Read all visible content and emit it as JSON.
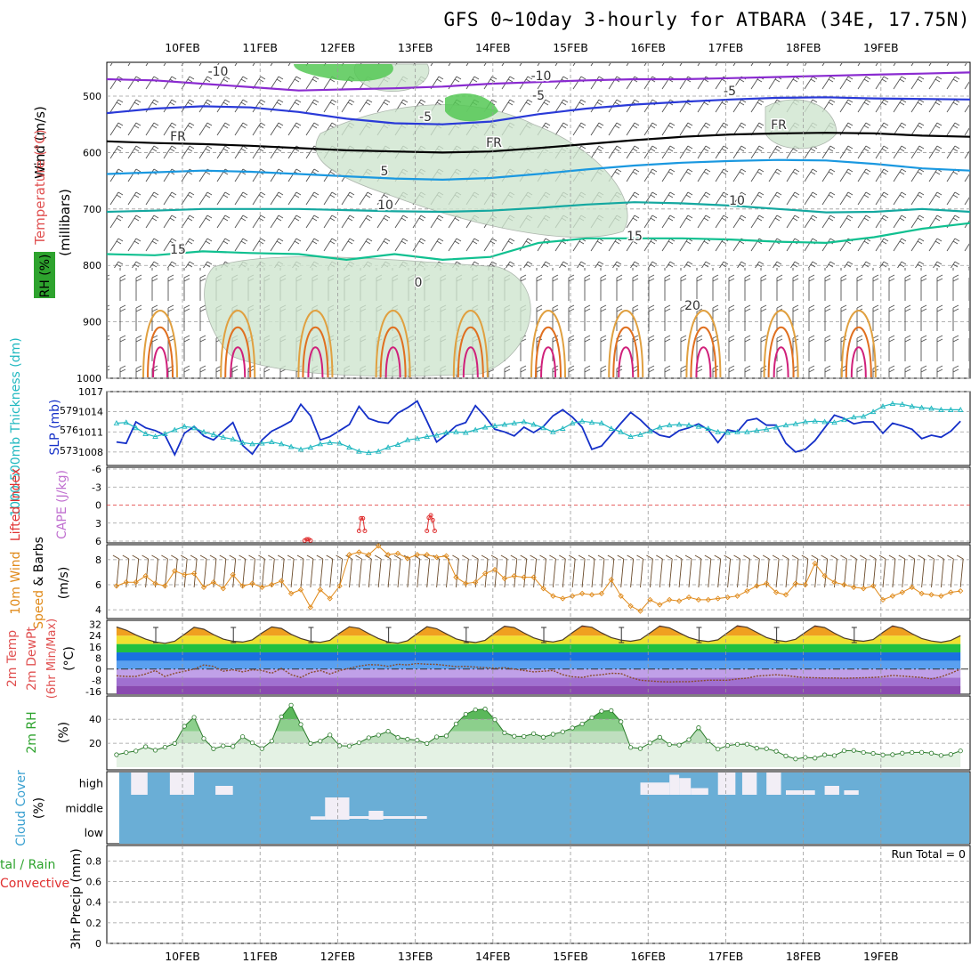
{
  "title": "GFS 0~10day 3-hourly for ATBARA (34E, 17.75N)",
  "colors": {
    "temperature_label": "#e05050",
    "rh_green": "#2ea32e",
    "slp": "#1530c8",
    "thickness": "#20b8c0",
    "cape": "#c070d0",
    "lifted_index": "#e03030",
    "wind10m": "#e08a1a",
    "cloud_label": "#3aa0d0",
    "cloud_fill": "#6aaed6",
    "precip_convective": "#e03030"
  },
  "chart_data": [
    {
      "panel": "upper-air",
      "type": "heatmap",
      "ylabel": "(millibars)",
      "side_labels": {
        "wind": "Wind (m/s)",
        "temperature": "Temperature (°C)",
        "rh": "RH (%)"
      },
      "yticks": [
        500,
        600,
        700,
        800,
        900,
        1000
      ],
      "ylim": [
        440,
        1000
      ],
      "x_ticks": [
        "10FEB",
        "11FEB",
        "12FEB",
        "13FEB",
        "14FEB",
        "15FEB",
        "16FEB",
        "17FEB",
        "18FEB",
        "19FEB"
      ],
      "contour_labels": [
        "-10",
        "-10",
        "-5",
        "-5",
        "FR",
        "FR",
        "FR",
        "-5",
        "5",
        "10",
        "10",
        "15",
        "15",
        "0",
        "20"
      ],
      "isotherms": [
        {
          "name": "-10",
          "color": "#8a2bd0",
          "p": [
            470,
            472,
            478,
            484,
            490,
            488,
            486,
            483,
            478,
            475,
            472,
            470,
            470,
            468,
            466,
            464,
            462,
            460,
            458
          ]
        },
        {
          "name": "-5",
          "color": "#2a3ad8",
          "p": [
            530,
            522,
            518,
            520,
            528,
            540,
            548,
            550,
            545,
            532,
            522,
            515,
            510,
            506,
            503,
            502,
            504,
            505,
            506
          ]
        },
        {
          "name": "FR",
          "color": "#000000",
          "p": [
            580,
            583,
            585,
            588,
            592,
            596,
            598,
            600,
            598,
            592,
            585,
            578,
            572,
            568,
            566,
            565,
            566,
            570,
            572
          ]
        },
        {
          "name": "5",
          "color": "#1a98e0",
          "p": [
            638,
            635,
            632,
            634,
            638,
            642,
            646,
            648,
            645,
            638,
            630,
            623,
            618,
            615,
            613,
            614,
            620,
            628,
            632
          ]
        },
        {
          "name": "10",
          "color": "#14a8a0",
          "p": [
            705,
            703,
            700,
            700,
            700,
            702,
            704,
            705,
            703,
            698,
            692,
            688,
            690,
            694,
            700,
            706,
            705,
            700,
            705
          ]
        },
        {
          "name": "15",
          "color": "#10c090",
          "p": [
            780,
            782,
            775,
            778,
            780,
            790,
            780,
            790,
            785,
            760,
            752,
            752,
            752,
            754,
            758,
            760,
            750,
            735,
            725
          ]
        }
      ]
    },
    {
      "panel": "slp-thickness",
      "type": "line",
      "ylabel_left": "1000-500mb Thickness (dm)",
      "ylabel_right": "SLP (mb)",
      "yticks_left": [
        573,
        576,
        579
      ],
      "yticks_right": [
        1008,
        1011,
        1014,
        1017
      ],
      "ylim_right": [
        1006,
        1017
      ],
      "series": [
        {
          "name": "SLP (mb)",
          "axis": "right",
          "values": [
            1009.5,
            1009.3,
            1012.5,
            1011.6,
            1011.2,
            1010.5,
            1007.6,
            1010.8,
            1011.8,
            1010.4,
            1009.8,
            1011.1,
            1012.4,
            1009.0,
            1007.7,
            1009.8,
            1011.1,
            1011.8,
            1012.6,
            1015.1,
            1013.4,
            1009.8,
            1010.3,
            1011.2,
            1012.1,
            1014.8,
            1013.0,
            1012.5,
            1012.3,
            1013.8,
            1014.6,
            1015.6,
            1012.6,
            1009.5,
            1010.6,
            1011.9,
            1012.4,
            1014.9,
            1013.3,
            1011.4,
            1011.0,
            1010.4,
            1011.7,
            1010.9,
            1011.8,
            1013.4,
            1014.3,
            1013.2,
            1011.7,
            1008.4,
            1008.9,
            1010.6,
            1012.3,
            1013.9,
            1012.8,
            1011.4,
            1010.5,
            1010.2,
            1011.2,
            1011.6,
            1012.2,
            1011.3,
            1009.4,
            1011.3,
            1011.0,
            1012.7,
            1013.0,
            1012.0,
            1012.0,
            1009.3,
            1008.0,
            1008.4,
            1009.7,
            1011.6,
            1013.5,
            1013.0,
            1012.2,
            1012.5,
            1012.5,
            1010.8,
            1012.3,
            1011.9,
            1011.4,
            1010.0,
            1010.5,
            1010.2,
            1011.1,
            1012.6
          ]
        },
        {
          "name": "Thickness (dm)",
          "axis": "left",
          "values": [
            1012.3,
            1012.4,
            1011.6,
            1010.7,
            1010.3,
            1010.7,
            1011.3,
            1011.8,
            1011.6,
            1011.0,
            1010.6,
            1010.2,
            1009.9,
            1009.4,
            1009.2,
            1009.3,
            1009.5,
            1009.2,
            1008.8,
            1008.4,
            1008.7,
            1009.2,
            1009.4,
            1009.3,
            1008.7,
            1008.1,
            1007.9,
            1008.1,
            1008.7,
            1009.1,
            1009.8,
            1010.0,
            1010.3,
            1010.5,
            1010.9,
            1011.0,
            1010.9,
            1011.3,
            1011.7,
            1011.9,
            1012.1,
            1012.3,
            1012.5,
            1012.1,
            1011.6,
            1011.0,
            1011.5,
            1012.3,
            1012.6,
            1012.4,
            1012.3,
            1011.5,
            1011.0,
            1010.3,
            1010.6,
            1011.1,
            1011.7,
            1012.0,
            1012.1,
            1012.0,
            1011.8,
            1011.5,
            1011.0,
            1010.9,
            1011.0,
            1011.0,
            1011.2,
            1011.4,
            1011.7,
            1012.0,
            1012.2,
            1012.5,
            1012.6,
            1012.5,
            1012.4,
            1012.8,
            1013.2,
            1013.3,
            1014.0,
            1014.8,
            1015.2,
            1015.1,
            1014.8,
            1014.6,
            1014.5,
            1014.3,
            1014.3,
            1014.3
          ]
        }
      ]
    },
    {
      "panel": "instability",
      "type": "line",
      "ylabel": "Lifted Index / CAPE (J/kg)",
      "yticks": [
        -6,
        -3,
        0,
        3,
        6
      ],
      "ylim": [
        -6,
        6
      ],
      "series": [
        {
          "name": "Lifted Index",
          "values": [
            [
              19.4,
              5.9
            ],
            [
              19.6,
              5.7
            ],
            [
              19.8,
              5.7
            ],
            [
              20.0,
              5.9
            ],
            [
              25.0,
              4.3
            ],
            [
              25.2,
              2.2
            ],
            [
              25.4,
              2.2
            ],
            [
              25.6,
              4.3
            ],
            [
              32.0,
              4.3
            ],
            [
              32.2,
              2.1
            ],
            [
              32.4,
              1.7
            ],
            [
              32.6,
              2.5
            ],
            [
              32.8,
              4.3
            ]
          ]
        }
      ]
    },
    {
      "panel": "wind10m",
      "type": "line",
      "ylabel": "10m Wind Speed & Barbs (m/s)",
      "yticks": [
        4,
        6,
        8
      ],
      "ylim": [
        3.3,
        9.2
      ],
      "series": [
        {
          "name": "10m Wind Speed",
          "values": [
            5.9,
            6.2,
            6.2,
            6.7,
            6.1,
            5.9,
            7.1,
            6.8,
            6.9,
            5.8,
            6.2,
            5.7,
            6.8,
            5.9,
            6.1,
            5.8,
            6.0,
            6.3,
            5.3,
            5.6,
            4.2,
            5.6,
            4.9,
            5.9,
            8.4,
            8.6,
            8.4,
            9.1,
            8.4,
            8.5,
            8.1,
            8.4,
            8.4,
            8.2,
            8.3,
            6.6,
            6.1,
            6.2,
            6.9,
            7.2,
            6.5,
            6.7,
            6.6,
            6.6,
            5.7,
            5.1,
            4.9,
            5.1,
            5.3,
            5.2,
            5.3,
            6.4,
            5.1,
            4.3,
            3.9,
            4.8,
            4.4,
            4.8,
            4.7,
            5.0,
            4.8,
            4.8,
            4.9,
            5.0,
            5.1,
            5.5,
            5.9,
            6.1,
            5.4,
            5.2,
            6.1,
            6.0,
            7.7,
            6.7,
            6.2,
            6.0,
            5.8,
            5.7,
            5.9,
            4.8,
            5.1,
            5.4,
            5.8,
            5.3,
            5.2,
            5.1,
            5.4,
            5.5
          ]
        }
      ]
    },
    {
      "panel": "temperature2m",
      "type": "area",
      "ylabel": "2m Temp / 2m DewPt (6hr Min/Max) (°C)",
      "yticks": [
        32,
        24,
        16,
        8,
        0,
        -8,
        -16
      ],
      "ylim": [
        -18,
        35
      ],
      "series": [
        {
          "name": "2m Temp",
          "values": [
            30.2,
            28.0,
            24.5,
            21.5,
            19.5,
            18.5,
            20.0,
            25.0,
            30.0,
            28.6,
            24.8,
            21.5,
            20.0,
            19.4,
            21.0,
            26.0,
            30.3,
            29.2,
            25.0,
            22.0,
            20.0,
            19.2,
            20.7,
            25.8,
            30.4,
            29.3,
            25.5,
            22.0,
            19.5,
            18.6,
            20.4,
            25.5,
            30.4,
            29.0,
            25.3,
            21.7,
            19.9,
            19.1,
            20.7,
            26.0,
            30.8,
            29.8,
            26.0,
            22.4,
            20.4,
            19.5,
            21.0,
            26.2,
            31.0,
            30.0,
            26.0,
            22.6,
            20.8,
            20.0,
            21.2,
            26.0,
            30.9,
            29.6,
            26.1,
            22.7,
            20.7,
            19.8,
            21.0,
            26.2,
            31.1,
            30.0,
            26.4,
            22.7,
            20.7,
            19.8,
            21.4,
            26.4,
            31.0,
            29.8,
            25.8,
            22.3,
            20.7,
            20.0,
            21.2,
            26.4,
            31.0,
            29.4,
            25.4,
            22.0,
            20.2,
            19.3,
            20.6,
            24.0
          ]
        },
        {
          "name": "2m DewPt",
          "values": [
            -4.8,
            -5.2,
            -5.2,
            -3.5,
            -1.0,
            -5.3,
            -3.0,
            -1.5,
            0.0,
            3.0,
            2.0,
            -1.5,
            -0.5,
            -2.0,
            -0.5,
            -1.0,
            -3.0,
            0.5,
            -4.0,
            -6.0,
            -2.5,
            -1.0,
            -3.5,
            -1.0,
            0.5,
            2.2,
            3.2,
            3.0,
            2.0,
            3.5,
            3.0,
            4.0,
            3.5,
            3.4,
            2.6,
            1.8,
            2.0,
            1.5,
            1.0,
            0.5,
            1.0,
            0.0,
            -1.0,
            -2.0,
            -1.5,
            -1.0,
            -4.0,
            -5.5,
            -6.0,
            -4.5,
            -4.0,
            -3.0,
            -3.2,
            -6.0,
            -8.0,
            -8.5,
            -9.0,
            -9.2,
            -9.0,
            -9.0,
            -8.5,
            -8.0,
            -8.0,
            -8.0,
            -7.0,
            -6.5,
            -5.0,
            -4.5,
            -4.0,
            -4.5,
            -5.5,
            -6.0,
            -6.2,
            -6.4,
            -6.4,
            -6.6,
            -6.4,
            -6.2,
            -6.0,
            -5.5,
            -4.5,
            -5.0,
            -5.5,
            -6.0,
            -7.0,
            -5.5,
            -3.0,
            0.0
          ]
        }
      ]
    },
    {
      "panel": "rh2m",
      "type": "area",
      "ylabel": "2m RH (%)",
      "yticks": [
        20,
        40
      ],
      "ylim": [
        0,
        58
      ],
      "series": [
        {
          "name": "2m RH",
          "values": [
            10.4,
            12.2,
            13.5,
            17.1,
            14.2,
            16.7,
            19.8,
            34.2,
            41.7,
            23.9,
            15.4,
            17.8,
            17.3,
            25.5,
            20.4,
            15.5,
            21.8,
            42.1,
            51.8,
            35.7,
            19.8,
            21.8,
            26.9,
            17.9,
            17.7,
            20.4,
            24.6,
            26.8,
            30.0,
            24.8,
            23.4,
            22.6,
            19.8,
            25.3,
            26.1,
            36.2,
            44.3,
            47.9,
            48.6,
            39.7,
            28.7,
            25.9,
            25.7,
            28.0,
            25.1,
            27.5,
            29.6,
            32.8,
            36.1,
            41.3,
            46.8,
            47.3,
            38.0,
            16.5,
            15.6,
            20.2,
            25.0,
            18.9,
            18.5,
            23.0,
            33.0,
            21.8,
            15.1,
            18.1,
            19.1,
            19.2,
            15.9,
            15.5,
            13.3,
            9.4,
            6.9,
            8.2,
            7.6,
            10.3,
            9.7,
            13.7,
            14.0,
            12.3,
            11.5,
            10.2,
            10.5,
            11.7,
            12.3,
            12.4,
            11.7,
            9.8,
            10.7,
            13.6
          ]
        }
      ]
    },
    {
      "panel": "cloud",
      "type": "bar",
      "ylabel": "Cloud Cover (%)",
      "levels": [
        "high",
        "middle",
        "low"
      ],
      "blocks": [
        {
          "level": "high",
          "x0": 1.5,
          "x1": 3.2,
          "top": 0.0
        },
        {
          "level": "high",
          "x0": 5.5,
          "x1": 8.0,
          "top": 0.0
        },
        {
          "level": "high",
          "x0": 10.2,
          "x1": 12.0,
          "top": 0.6
        },
        {
          "level": "high",
          "x0": 54.0,
          "x1": 57.0,
          "top": 0.45
        },
        {
          "level": "high",
          "x0": 57.0,
          "x1": 58.0,
          "top": 0.1
        },
        {
          "level": "high",
          "x0": 58.0,
          "x1": 59.2,
          "top": 0.25
        },
        {
          "level": "high",
          "x0": 59.2,
          "x1": 61.0,
          "top": 0.7
        },
        {
          "level": "high",
          "x0": 62.0,
          "x1": 63.8,
          "top": 0.0
        },
        {
          "level": "high",
          "x0": 64.5,
          "x1": 66.0,
          "top": 0.0
        },
        {
          "level": "high",
          "x0": 67.0,
          "x1": 68.5,
          "top": 0.0
        },
        {
          "level": "high",
          "x0": 69.0,
          "x1": 72.0,
          "top": 0.8
        },
        {
          "level": "high",
          "x0": 73.0,
          "x1": 74.5,
          "top": 0.6
        },
        {
          "level": "high",
          "x0": 75.0,
          "x1": 76.5,
          "top": 0.8
        },
        {
          "level": "high",
          "x0": 93.0,
          "x1": 96.5,
          "top": 0.0
        },
        {
          "level": "middle",
          "x0": 20.0,
          "x1": 21.5,
          "top": 0.85
        },
        {
          "level": "middle",
          "x0": 21.5,
          "x1": 24.0,
          "top": 0.0
        },
        {
          "level": "middle",
          "x0": 26.0,
          "x1": 27.5,
          "top": 0.6
        }
      ]
    },
    {
      "panel": "precip",
      "type": "bar",
      "ylabel": "3hr Precip (mm)",
      "legend": "Total / Rain / Convective",
      "legend_label_left": "tal / Rain",
      "legend_label_convective": "Convective",
      "yticks": [
        0,
        0.2,
        0.4,
        0.6,
        0.8
      ],
      "ylim": [
        0,
        0.95
      ],
      "run_total": "Run Total = 0",
      "values": []
    }
  ]
}
